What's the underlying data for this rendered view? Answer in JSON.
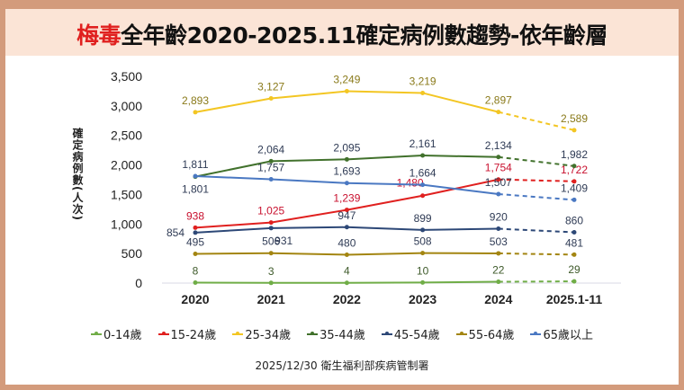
{
  "chart_data": {
    "type": "line",
    "title_red": "梅毒",
    "title_rest": "全年齡2020-2025.11確定病例數趨勢-依年齡層",
    "ylabel": "確定病例數(人次)",
    "xlabel": "",
    "categories": [
      "2020",
      "2021",
      "2022",
      "2023",
      "2024",
      "2025.1-11"
    ],
    "ylim": [
      0,
      3500
    ],
    "yticks": [
      "0",
      "500",
      "1,000",
      "1,500",
      "2,000",
      "2,500",
      "3,000",
      "3,500"
    ],
    "grid": false,
    "legend_position": "bottom",
    "last_segment_dashed": true,
    "series": [
      {
        "name": "0-14歲",
        "color": "#70ad47",
        "values": [
          8,
          3,
          4,
          10,
          22,
          29
        ],
        "labels": [
          "8",
          "3",
          "4",
          "10",
          "22",
          "29"
        ]
      },
      {
        "name": "15-24歲",
        "color": "#e0201f",
        "values": [
          938,
          1025,
          1239,
          1480,
          1754,
          1722
        ],
        "labels": [
          "938",
          "1,025",
          "1,239",
          "1,480",
          "1,754",
          "1,722"
        ]
      },
      {
        "name": "25-34歲",
        "color": "#f3c623",
        "values": [
          2893,
          3127,
          3249,
          3219,
          2897,
          2589
        ],
        "labels": [
          "2,893",
          "3,127",
          "3,249",
          "3,219",
          "2,897",
          "2,589"
        ]
      },
      {
        "name": "35-44歲",
        "color": "#41712c",
        "values": [
          1801,
          2064,
          2095,
          2161,
          2134,
          1982
        ],
        "labels": [
          "1,801",
          "2,064",
          "2,095",
          "2,161",
          "2,134",
          "1,982"
        ]
      },
      {
        "name": "45-54歲",
        "color": "#2d4877",
        "values": [
          854,
          931,
          947,
          899,
          920,
          860
        ],
        "labels": [
          "854",
          "931",
          "947",
          "899",
          "920",
          "860"
        ]
      },
      {
        "name": "55-64歲",
        "color": "#a38511",
        "values": [
          495,
          506,
          480,
          508,
          503,
          481
        ],
        "labels": [
          "495",
          "506",
          "480",
          "508",
          "503",
          "481"
        ]
      },
      {
        "name": "65歲以上",
        "color": "#4a78c2",
        "values": [
          1811,
          1757,
          1693,
          1664,
          1507,
          1409
        ],
        "labels": [
          "1,811",
          "1,757",
          "1,693",
          "1,664",
          "1,507",
          "1,409"
        ]
      }
    ]
  },
  "source": "2025/12/30 衛生福利部疾病管制署"
}
